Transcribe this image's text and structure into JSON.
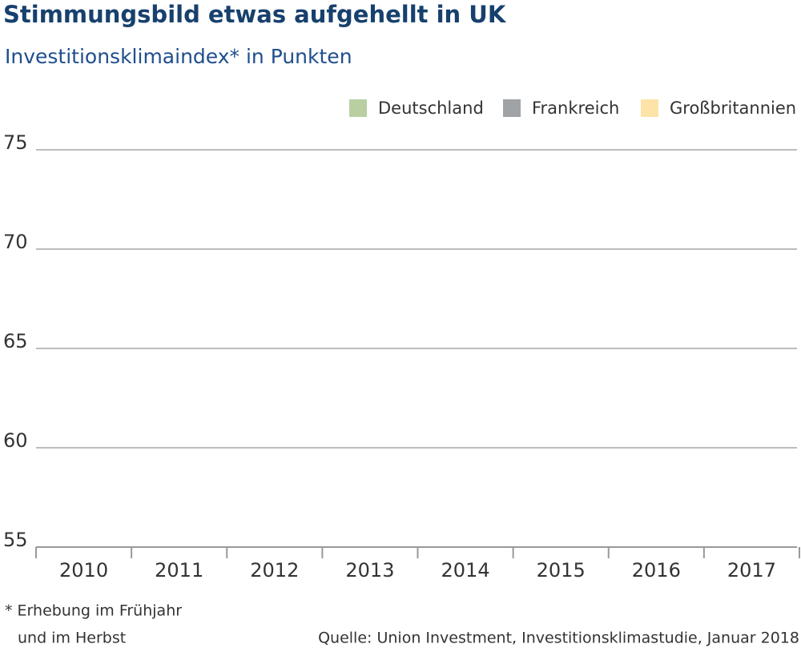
{
  "chart_data": {
    "type": "bar",
    "title": "Stimmungsbild etwas aufgehellt in UK",
    "subtitle": "Investitionsklimaindex* in Punkten",
    "categories": [
      "2010",
      "2011",
      "2012",
      "2013",
      "2014",
      "2015",
      "2016",
      "2017"
    ],
    "series": [
      {
        "name": "Deutschland",
        "color": "#b9cfa1",
        "values": [
          null,
          null,
          null,
          null,
          null,
          null,
          null,
          null
        ]
      },
      {
        "name": "Frankreich",
        "color": "#a0a3a6",
        "values": [
          null,
          null,
          null,
          null,
          null,
          null,
          null,
          null
        ]
      },
      {
        "name": "Großbritannien",
        "color": "#fde3a7",
        "values": [
          null,
          null,
          null,
          null,
          null,
          null,
          null,
          null
        ]
      }
    ],
    "ylim": [
      55,
      75
    ],
    "yticks": [
      55,
      60,
      65,
      70,
      75
    ],
    "grid": true,
    "legend": "top-right",
    "notes": [
      "* Erhebung im Frühjahr",
      "und im Herbst"
    ],
    "source": "Quelle: Union Investment, Investitionsklimastudie, Januar 2018"
  }
}
